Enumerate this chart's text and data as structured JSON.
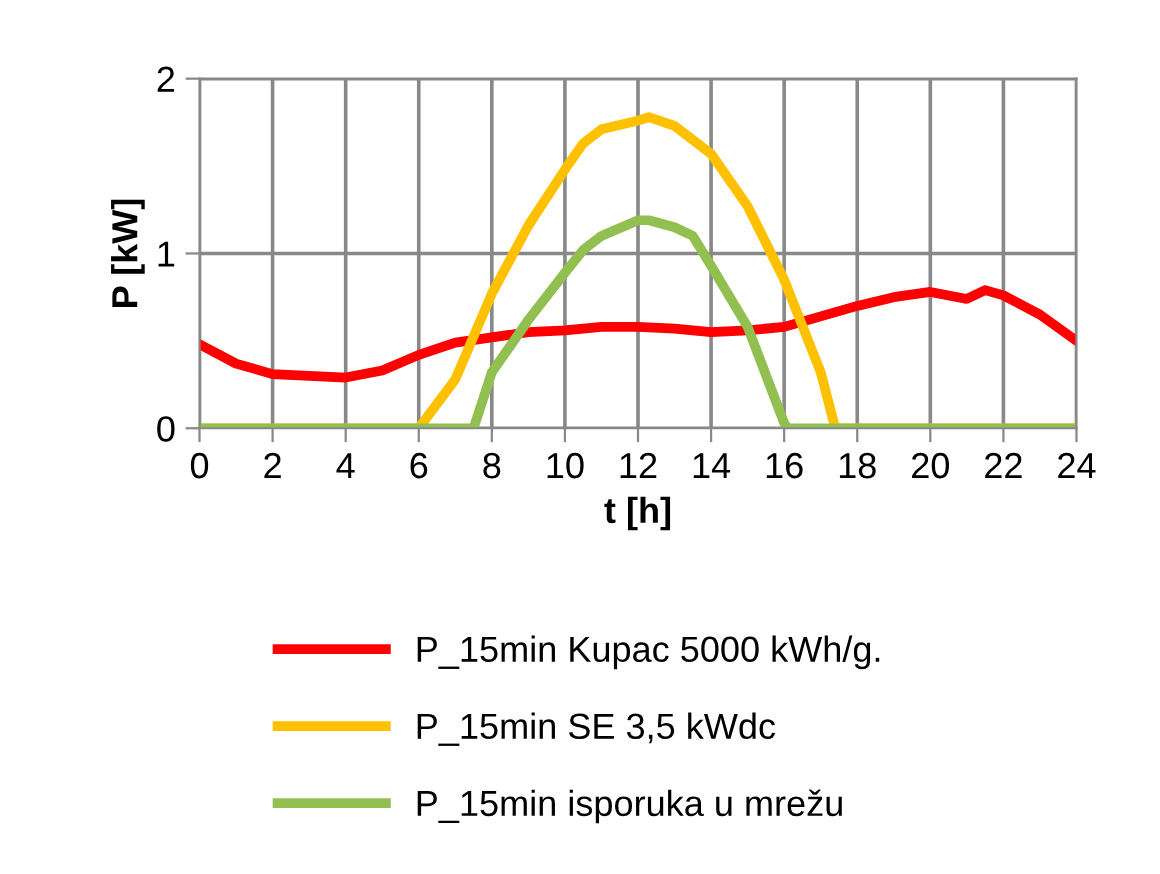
{
  "chart_data": {
    "type": "line",
    "xlabel": "t [h]",
    "ylabel": "P [kW]",
    "xlim": [
      0,
      24
    ],
    "ylim": [
      0,
      2
    ],
    "xticks": [
      0,
      2,
      4,
      6,
      8,
      10,
      12,
      14,
      16,
      18,
      20,
      22,
      24
    ],
    "yticks": [
      0,
      1,
      2
    ],
    "grid": true,
    "legend": "bottom",
    "marker": "none",
    "line_style": "solid",
    "series": [
      {
        "name": "P_15min Kupac 5000 kWh/g.",
        "color": "#ff0000",
        "x": [
          0,
          1,
          2,
          3,
          4,
          5,
          6,
          7,
          8,
          9,
          10,
          11,
          12,
          13,
          14,
          15,
          16,
          17,
          18,
          19,
          20,
          21,
          21.5,
          22,
          23,
          24
        ],
        "values": [
          0.48,
          0.37,
          0.31,
          0.3,
          0.29,
          0.33,
          0.42,
          0.49,
          0.52,
          0.55,
          0.56,
          0.58,
          0.58,
          0.57,
          0.55,
          0.56,
          0.58,
          0.64,
          0.7,
          0.75,
          0.78,
          0.74,
          0.79,
          0.76,
          0.65,
          0.5
        ]
      },
      {
        "name": "P_15min SE 3,5 kWdc",
        "color": "#ffc000",
        "x": [
          0,
          6,
          7,
          8,
          9,
          10,
          10.5,
          11,
          12,
          12.3,
          13,
          14,
          15,
          16,
          17,
          17.4,
          24
        ],
        "values": [
          0,
          0,
          0.28,
          0.77,
          1.16,
          1.48,
          1.63,
          1.71,
          1.76,
          1.78,
          1.73,
          1.57,
          1.27,
          0.85,
          0.32,
          0,
          0
        ]
      },
      {
        "name": "P_15min isporuka u mrežu",
        "color": "#92c050",
        "x": [
          0,
          7.5,
          8,
          9,
          10,
          10.5,
          11,
          12,
          12.3,
          13,
          13.5,
          14,
          15,
          16,
          16.1,
          24
        ],
        "values": [
          0,
          0,
          0.32,
          0.62,
          0.89,
          1.02,
          1.1,
          1.19,
          1.19,
          1.15,
          1.1,
          0.93,
          0.58,
          0.03,
          0,
          0
        ]
      }
    ]
  }
}
